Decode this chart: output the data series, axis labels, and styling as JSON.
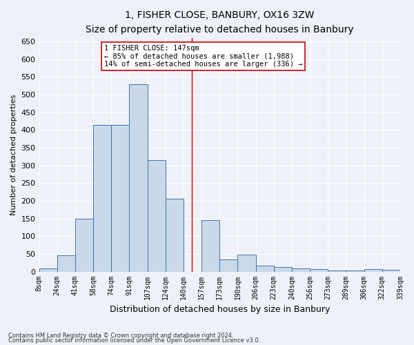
{
  "title": "1, FISHER CLOSE, BANBURY, OX16 3ZW",
  "subtitle": "Size of property relative to detached houses in Banbury",
  "xlabel": "Distribution of detached houses by size in Banbury",
  "ylabel": "Number of detached properties",
  "bar_labels": [
    "8sqm",
    "24sqm",
    "41sqm",
    "58sqm",
    "74sqm",
    "91sqm",
    "107sqm",
    "124sqm",
    "140sqm",
    "157sqm",
    "173sqm",
    "190sqm",
    "206sqm",
    "223sqm",
    "240sqm",
    "256sqm",
    "273sqm",
    "289sqm",
    "306sqm",
    "322sqm",
    "339sqm"
  ],
  "bar_values": [
    8,
    45,
    150,
    415,
    415,
    530,
    315,
    205,
    0,
    145,
    35,
    48,
    16,
    13,
    9,
    7,
    3,
    3,
    6,
    5
  ],
  "bar_color": "#c9d9ea",
  "bar_edge_color": "#4472a8",
  "ylim": [
    0,
    660
  ],
  "yticks": [
    0,
    50,
    100,
    150,
    200,
    250,
    300,
    350,
    400,
    450,
    500,
    550,
    600,
    650
  ],
  "vline_x_index": 8.47,
  "vline_color": "#cc0000",
  "annotation_title": "1 FISHER CLOSE: 147sqm",
  "annotation_line1": "← 85% of detached houses are smaller (1,988)",
  "annotation_line2": "14% of semi-detached houses are larger (336) →",
  "annotation_box_color": "#ffffff",
  "annotation_box_edge": "#cc0000",
  "background_color": "#eef2f8",
  "footnote1": "Contains HM Land Registry data © Crown copyright and database right 2024.",
  "footnote2": "Contains public sector information licensed under the Open Government Licence v3.0."
}
